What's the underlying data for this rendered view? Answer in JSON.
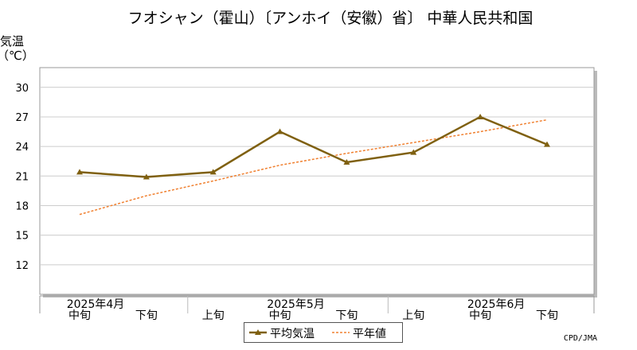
{
  "chart_data": {
    "type": "line",
    "title": "フオシャン（霍山）〔アンホイ（安徽）省〕 中華人民共和国",
    "ylabel_line1": "気温",
    "ylabel_line2": "（℃）",
    "ylim": [
      9,
      32
    ],
    "yticks": [
      12,
      15,
      18,
      21,
      24,
      27,
      30
    ],
    "categories": [
      "中旬",
      "下旬",
      "上旬",
      "中旬",
      "下旬",
      "上旬",
      "中旬",
      "下旬"
    ],
    "month_labels": [
      {
        "label": "2025年4月",
        "index": 0
      },
      {
        "label": "2025年5月",
        "index": 3
      },
      {
        "label": "2025年6月",
        "index": 6
      }
    ],
    "series": [
      {
        "name": "平均気温",
        "color": "#7f6010",
        "values": [
          21.4,
          20.9,
          21.4,
          25.5,
          22.4,
          23.4,
          27.0,
          24.2
        ]
      },
      {
        "name": "平年値",
        "color": "#f08030",
        "values": [
          17.1,
          19.0,
          20.5,
          22.1,
          23.3,
          24.4,
          25.5,
          26.7
        ]
      }
    ],
    "grid": true,
    "legend": "bottom-center"
  },
  "credit": "CPD/JMA"
}
